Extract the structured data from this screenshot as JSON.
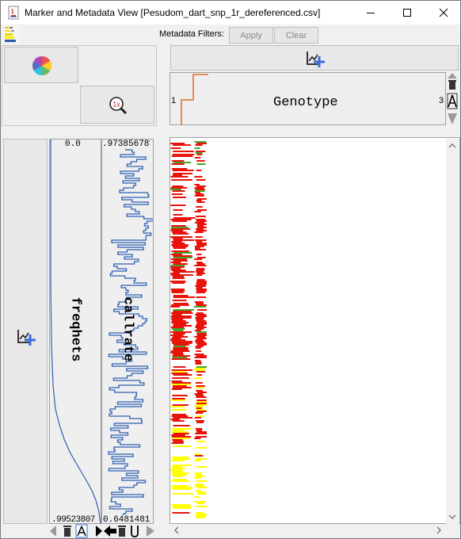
{
  "window": {
    "title": "Marker and Metadata View [Pesudom_dart_snp_1r_dereferenced.csv]",
    "icon": "java-cup-icon"
  },
  "toolbar": {
    "metadata_label": "Metadata Filters:",
    "apply_label": "Apply",
    "clear_label": "Clear"
  },
  "left_panel": {
    "color_wheel_icon": "color-wheel-icon",
    "zoom_icon": "zoom-1x-icon",
    "zoom_label": "1x",
    "add_chart_icon": "add-chart-icon"
  },
  "tracks": {
    "freqhets": {
      "label": "freqhets",
      "top_value": "0.0",
      "bottom_value": ".99523807"
    },
    "callrate": {
      "label": "callrate",
      "top_value": ".97385678",
      "bottom_value": "0.6481481"
    }
  },
  "genotype_header": {
    "label": "Genotype",
    "min_value": "1",
    "max_value": "3"
  },
  "bottom_toolbar": {
    "icons": [
      "arrow-left-icon",
      "trash-icon",
      "text-a-icon",
      "arrow-right-icon",
      "arrow-left-icon",
      "trash-icon",
      "text-u-icon",
      "arrow-right-icon"
    ]
  },
  "colors": {
    "accent_blue": "#3c6dd8",
    "line_blue": "#2f5fb3",
    "genotype_red": "#e8140c",
    "genotype_yellow": "#ffff00",
    "genotype_green": "#46a52c",
    "orange_step": "#e06c1f"
  }
}
